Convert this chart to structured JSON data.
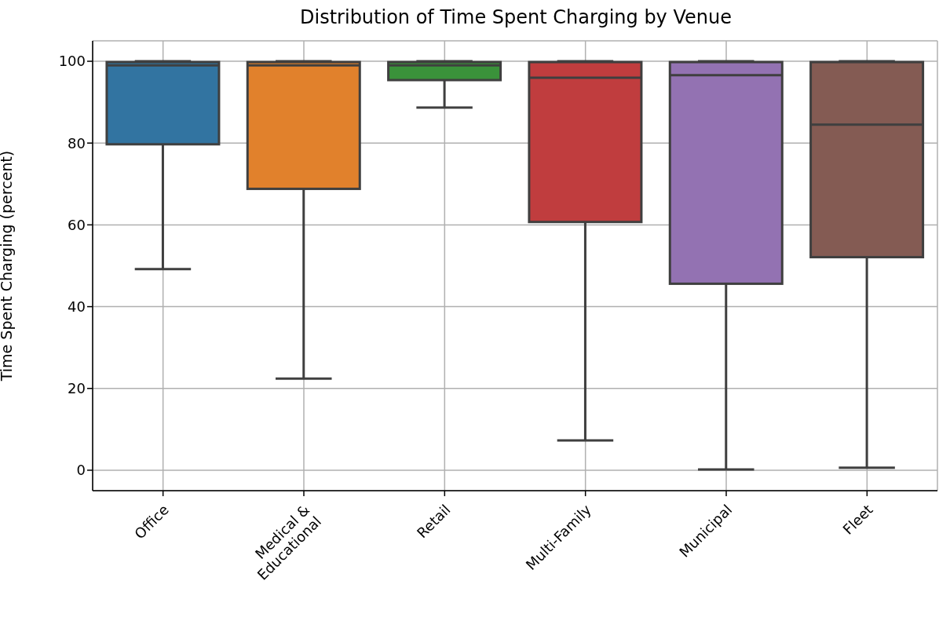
{
  "chart_data": {
    "type": "box",
    "title": "Distribution of Time Spent Charging by Venue",
    "ylabel": "Time Spent Charging (percent)",
    "categories": [
      "Office",
      "Medical & Educational",
      "Retail",
      "Multi-Family",
      "Municipal",
      "Fleet"
    ],
    "boxes": [
      {
        "low": 49.2,
        "q1": 79.7,
        "median": 99.0,
        "q3": 99.8,
        "high": 100
      },
      {
        "low": 22.4,
        "q1": 68.8,
        "median": 99.0,
        "q3": 99.8,
        "high": 100
      },
      {
        "low": 88.7,
        "q1": 95.4,
        "median": 99.0,
        "q3": 99.8,
        "high": 100
      },
      {
        "low": 7.3,
        "q1": 60.7,
        "median": 96.0,
        "q3": 99.8,
        "high": 100
      },
      {
        "low": 0.2,
        "q1": 45.6,
        "median": 96.6,
        "q3": 99.8,
        "high": 100
      },
      {
        "low": 0.6,
        "q1": 52.1,
        "median": 84.5,
        "q3": 99.8,
        "high": 100
      }
    ],
    "colors": [
      "#3274a1",
      "#e1812c",
      "#3a923a",
      "#c03d3e",
      "#9372b2",
      "#845b53"
    ],
    "ylim": [
      -5,
      105
    ],
    "yticks": [
      0,
      20,
      40,
      60,
      80,
      100
    ],
    "grid": true
  }
}
